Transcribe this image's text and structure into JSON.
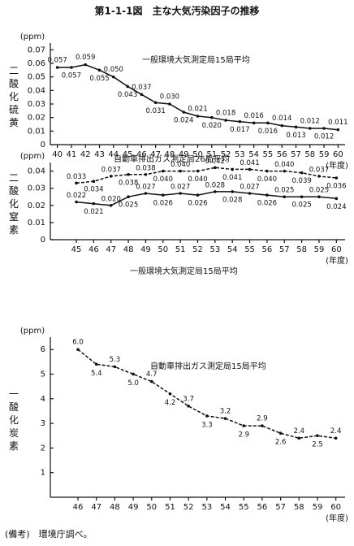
{
  "title": "第1-1-1図　主な大気汚染因子の推移",
  "note": "(備考)　環境庁調べ。",
  "chart_data": [
    {
      "type": "line",
      "y_label": "二酸化硫黄",
      "y_unit": "(ppm)",
      "x_unit": "(年度)",
      "x": [
        40,
        41,
        42,
        43,
        44,
        45,
        46,
        47,
        48,
        49,
        50,
        51,
        52,
        53,
        54,
        55,
        56,
        57,
        58,
        59,
        60
      ],
      "xlim": [
        39.5,
        60.5
      ],
      "xticks": [
        40,
        41,
        42,
        43,
        44,
        45,
        46,
        47,
        48,
        49,
        50,
        51,
        52,
        53,
        54,
        55,
        56,
        57,
        58,
        59,
        60
      ],
      "ylim": [
        0,
        0.075
      ],
      "yticks": [
        0,
        0.01,
        0.02,
        0.03,
        0.04,
        0.05,
        0.06,
        0.07
      ],
      "series": [
        {
          "name": "一般環境大気測定局15局平均",
          "color": "#111111",
          "dashed": false,
          "values": [
            0.057,
            0.057,
            0.059,
            0.055,
            0.05,
            0.043,
            0.037,
            0.031,
            0.03,
            0.024,
            0.021,
            0.02,
            0.018,
            0.017,
            0.016,
            0.016,
            0.014,
            0.013,
            0.012,
            0.012,
            0.011
          ],
          "value_labels": [
            "0.057",
            "0.057",
            "0.059",
            "0.055",
            "0.050",
            "0.043",
            "0.037",
            "0.031",
            "0.030",
            "0.024",
            "0.021",
            "0.020",
            "0.018",
            "0.017",
            "0.016",
            "0.016",
            "0.014",
            "0.013",
            "0.012",
            "0.012",
            "0.011"
          ]
        }
      ]
    },
    {
      "type": "line",
      "y_label": "二酸化窒素",
      "y_unit": "(ppm)",
      "x_unit": "(年度)",
      "x": [
        45,
        46,
        47,
        48,
        49,
        50,
        51,
        52,
        53,
        54,
        55,
        56,
        57,
        58,
        59,
        60
      ],
      "xlim": [
        43.5,
        60.5
      ],
      "xticks": [
        45,
        46,
        47,
        48,
        49,
        50,
        51,
        52,
        53,
        54,
        55,
        56,
        57,
        58,
        59,
        60
      ],
      "ylim": [
        0,
        0.045
      ],
      "yticks": [
        0,
        0.01,
        0.02,
        0.03,
        0.04
      ],
      "series": [
        {
          "name": "自動車排出ガス測定局26局平均",
          "color": "#111111",
          "dashed": true,
          "values": [
            0.033,
            0.034,
            0.037,
            0.038,
            0.038,
            0.04,
            0.04,
            0.04,
            0.042,
            0.041,
            0.041,
            0.04,
            0.04,
            0.039,
            0.037,
            0.036
          ],
          "value_labels": [
            "0.033",
            "0.034",
            "0.037",
            "0.038",
            "0.038",
            "0.040",
            "0.040",
            "0.040",
            "0.042",
            "0.041",
            "0.041",
            "0.040",
            "0.040",
            "0.039",
            "0.037",
            "0.036"
          ]
        },
        {
          "name": "一般環境大気測定局15局平均",
          "color": "#111111",
          "dashed": false,
          "values": [
            0.022,
            0.021,
            0.02,
            0.025,
            0.027,
            0.026,
            0.027,
            0.026,
            0.028,
            0.028,
            0.027,
            0.026,
            0.025,
            0.025,
            0.025,
            0.024
          ],
          "value_labels": [
            "0.022",
            "0.021",
            "0.020",
            "0.025",
            "0.027",
            "0.026",
            "0.027",
            "0.026",
            "0.028",
            "0.028",
            "0.027",
            "0.026",
            "0.025",
            "0.025",
            "0.025",
            "0.024"
          ]
        }
      ]
    },
    {
      "type": "line",
      "y_label": "一酸化炭素",
      "y_unit": "(ppm)",
      "x_unit": "(年度)",
      "x": [
        46,
        47,
        48,
        49,
        50,
        51,
        52,
        53,
        54,
        55,
        56,
        57,
        58,
        59,
        60
      ],
      "xlim": [
        44.5,
        60.5
      ],
      "xticks": [
        46,
        47,
        48,
        49,
        50,
        51,
        52,
        53,
        54,
        55,
        56,
        57,
        58,
        59,
        60
      ],
      "ylim": [
        0,
        6.5
      ],
      "yticks": [
        1,
        2,
        3,
        4,
        5,
        6
      ],
      "series": [
        {
          "name": "自動車排出ガス測定局15局平均",
          "color": "#111111",
          "dashed": true,
          "values": [
            6.0,
            5.4,
            5.3,
            5.0,
            4.7,
            4.2,
            3.7,
            3.3,
            3.2,
            2.9,
            2.9,
            2.6,
            2.4,
            2.5,
            2.4
          ],
          "value_labels": [
            "6.0",
            "5.4",
            "5.3",
            "5.0",
            "4.7",
            "4.2",
            "3.7",
            "3.3",
            "3.2",
            "2.9",
            "2.9",
            "2.6",
            "2.4",
            "2.5",
            "2.4"
          ]
        }
      ]
    }
  ]
}
